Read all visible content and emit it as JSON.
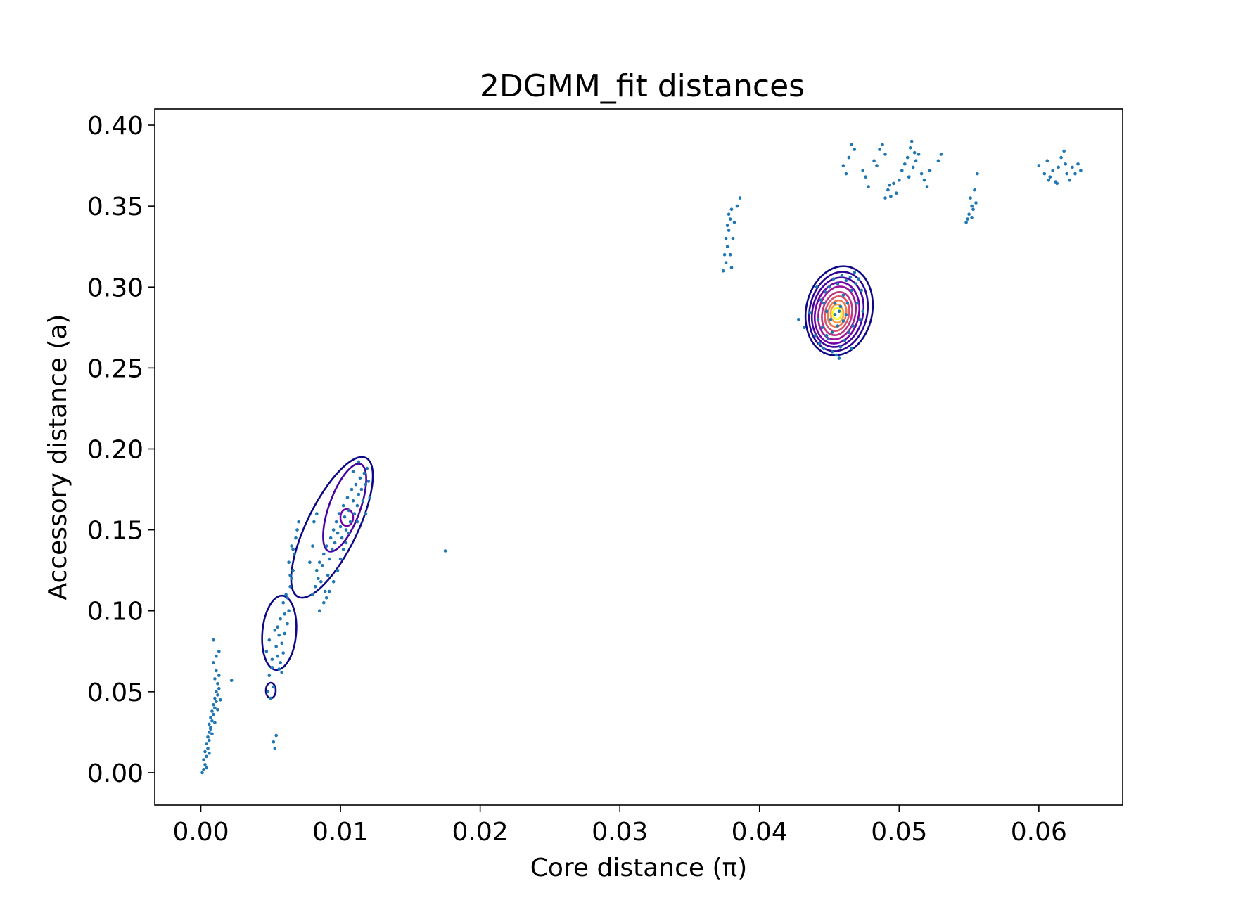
{
  "chart_data": {
    "type": "scatter",
    "title": "2DGMM_fit distances",
    "xlabel": "Core distance (π)",
    "ylabel": "Accessory distance (a)",
    "xlim": [
      -0.0033,
      0.066
    ],
    "ylim": [
      -0.02,
      0.41
    ],
    "xticks": [
      0.0,
      0.01,
      0.02,
      0.03,
      0.04,
      0.05,
      0.06
    ],
    "xtick_labels": [
      "0.00",
      "0.01",
      "0.02",
      "0.03",
      "0.04",
      "0.05",
      "0.06"
    ],
    "yticks": [
      0.0,
      0.05,
      0.1,
      0.15,
      0.2,
      0.25,
      0.3,
      0.35,
      0.4
    ],
    "ytick_labels": [
      "0.00",
      "0.05",
      "0.10",
      "0.15",
      "0.20",
      "0.25",
      "0.30",
      "0.35",
      "0.40"
    ],
    "grid": false,
    "point_color": "#1f77b4",
    "contour_colors": [
      "#0d0887",
      "#46039f",
      "#7201a8",
      "#9c179e",
      "#bd3786",
      "#d8576b",
      "#ed7953",
      "#fb9f3a",
      "#fdca26",
      "#f0f921"
    ],
    "series": [
      {
        "values": [
          [
            0.0001,
            0.0
          ],
          [
            0.0002,
            0.002
          ],
          [
            0.0003,
            0.005
          ],
          [
            0.0002,
            0.008
          ],
          [
            0.0004,
            0.01
          ],
          [
            0.0003,
            0.013
          ],
          [
            0.0005,
            0.015
          ],
          [
            0.0004,
            0.018
          ],
          [
            0.0006,
            0.02
          ],
          [
            0.0005,
            0.022
          ],
          [
            0.0006,
            0.025
          ],
          [
            0.0007,
            0.027
          ],
          [
            0.0006,
            0.03
          ],
          [
            0.0008,
            0.032
          ],
          [
            0.0007,
            0.034
          ],
          [
            0.0009,
            0.036
          ],
          [
            0.0008,
            0.038
          ],
          [
            0.001,
            0.04
          ],
          [
            0.0009,
            0.042
          ],
          [
            0.0011,
            0.044
          ],
          [
            0.001,
            0.046
          ],
          [
            0.0012,
            0.048
          ],
          [
            0.0011,
            0.05
          ],
          [
            0.0013,
            0.052
          ],
          [
            0.0012,
            0.055
          ],
          [
            0.001,
            0.058
          ],
          [
            0.0013,
            0.06
          ],
          [
            0.0011,
            0.063
          ],
          [
            0.0009,
            0.068
          ],
          [
            0.0011,
            0.072
          ],
          [
            0.0013,
            0.075
          ],
          [
            0.0009,
            0.082
          ],
          [
            0.0004,
            0.003
          ],
          [
            0.0006,
            0.012
          ],
          [
            0.0008,
            0.024
          ],
          [
            0.001,
            0.031
          ],
          [
            0.0012,
            0.039
          ],
          [
            0.0014,
            0.045
          ],
          [
            0.0007,
            0.028
          ],
          [
            0.0022,
            0.057
          ],
          [
            0.0048,
            0.05
          ],
          [
            0.005,
            0.046
          ],
          [
            0.0052,
            0.053
          ],
          [
            0.0049,
            0.06
          ],
          [
            0.0051,
            0.065
          ],
          [
            0.0053,
            0.015
          ],
          [
            0.0052,
            0.019
          ],
          [
            0.0054,
            0.023
          ],
          [
            0.0047,
            0.075
          ],
          [
            0.0049,
            0.082
          ],
          [
            0.0051,
            0.07
          ],
          [
            0.0054,
            0.078
          ],
          [
            0.0056,
            0.085
          ],
          [
            0.0055,
            0.09
          ],
          [
            0.0057,
            0.095
          ],
          [
            0.0053,
            0.088
          ],
          [
            0.0058,
            0.08
          ],
          [
            0.0055,
            0.072
          ],
          [
            0.006,
            0.098
          ],
          [
            0.0059,
            0.105
          ],
          [
            0.0061,
            0.11
          ],
          [
            0.0057,
            0.068
          ],
          [
            0.0058,
            0.062
          ],
          [
            0.0062,
            0.092
          ],
          [
            0.0063,
            0.1
          ],
          [
            0.0064,
            0.115
          ],
          [
            0.0065,
            0.12
          ],
          [
            0.0066,
            0.125
          ],
          [
            0.0063,
            0.13
          ],
          [
            0.0067,
            0.135
          ],
          [
            0.0065,
            0.14
          ],
          [
            0.0068,
            0.145
          ],
          [
            0.0069,
            0.15
          ],
          [
            0.007,
            0.155
          ],
          [
            0.0066,
            0.138
          ],
          [
            0.0064,
            0.122
          ],
          [
            0.0062,
            0.108
          ],
          [
            0.006,
            0.086
          ],
          [
            0.0056,
            0.064
          ],
          [
            0.0059,
            0.074
          ],
          [
            0.008,
            0.11
          ],
          [
            0.0082,
            0.115
          ],
          [
            0.0084,
            0.12
          ],
          [
            0.0083,
            0.125
          ],
          [
            0.0085,
            0.13
          ],
          [
            0.0087,
            0.128
          ],
          [
            0.0086,
            0.118
          ],
          [
            0.0088,
            0.135
          ],
          [
            0.0089,
            0.112
          ],
          [
            0.009,
            0.14
          ],
          [
            0.0091,
            0.122
          ],
          [
            0.0092,
            0.132
          ],
          [
            0.0093,
            0.145
          ],
          [
            0.0094,
            0.138
          ],
          [
            0.0095,
            0.15
          ],
          [
            0.0096,
            0.142
          ],
          [
            0.0097,
            0.155
          ],
          [
            0.0098,
            0.148
          ],
          [
            0.0099,
            0.16
          ],
          [
            0.01,
            0.152
          ],
          [
            0.0101,
            0.145
          ],
          [
            0.0102,
            0.165
          ],
          [
            0.0103,
            0.158
          ],
          [
            0.0104,
            0.15
          ],
          [
            0.0105,
            0.17
          ],
          [
            0.0106,
            0.162
          ],
          [
            0.0107,
            0.155
          ],
          [
            0.0108,
            0.175
          ],
          [
            0.0109,
            0.168
          ],
          [
            0.011,
            0.16
          ],
          [
            0.0111,
            0.178
          ],
          [
            0.0112,
            0.165
          ],
          [
            0.0113,
            0.172
          ],
          [
            0.0114,
            0.182
          ],
          [
            0.0115,
            0.175
          ],
          [
            0.0116,
            0.168
          ],
          [
            0.0117,
            0.185
          ],
          [
            0.0118,
            0.178
          ],
          [
            0.0119,
            0.188
          ],
          [
            0.012,
            0.18
          ],
          [
            0.0088,
            0.105
          ],
          [
            0.009,
            0.108
          ],
          [
            0.0085,
            0.1
          ],
          [
            0.0092,
            0.112
          ],
          [
            0.0095,
            0.118
          ],
          [
            0.0098,
            0.125
          ],
          [
            0.01,
            0.132
          ],
          [
            0.0102,
            0.138
          ],
          [
            0.0104,
            0.142
          ],
          [
            0.0106,
            0.148
          ],
          [
            0.0078,
            0.13
          ],
          [
            0.008,
            0.14
          ],
          [
            0.0081,
            0.155
          ],
          [
            0.0083,
            0.16
          ],
          [
            0.0112,
            0.155
          ],
          [
            0.0118,
            0.16
          ],
          [
            0.0121,
            0.17
          ],
          [
            0.0113,
            0.192
          ],
          [
            0.0109,
            0.186
          ],
          [
            0.0175,
            0.137
          ],
          [
            0.0374,
            0.31
          ],
          [
            0.0376,
            0.315
          ],
          [
            0.0375,
            0.32
          ],
          [
            0.0377,
            0.325
          ],
          [
            0.0376,
            0.33
          ],
          [
            0.0378,
            0.335
          ],
          [
            0.0377,
            0.338
          ],
          [
            0.0379,
            0.342
          ],
          [
            0.0378,
            0.345
          ],
          [
            0.038,
            0.348
          ],
          [
            0.0381,
            0.33
          ],
          [
            0.0382,
            0.34
          ],
          [
            0.0384,
            0.35
          ],
          [
            0.0386,
            0.355
          ],
          [
            0.0379,
            0.32
          ],
          [
            0.038,
            0.312
          ],
          [
            0.044,
            0.27
          ],
          [
            0.0443,
            0.265
          ],
          [
            0.0446,
            0.262
          ],
          [
            0.0449,
            0.268
          ],
          [
            0.0452,
            0.26
          ],
          [
            0.0455,
            0.258
          ],
          [
            0.0458,
            0.263
          ],
          [
            0.0461,
            0.267
          ],
          [
            0.0464,
            0.272
          ],
          [
            0.0467,
            0.276
          ],
          [
            0.0442,
            0.28
          ],
          [
            0.0445,
            0.275
          ],
          [
            0.0448,
            0.285
          ],
          [
            0.0451,
            0.28
          ],
          [
            0.0454,
            0.29
          ],
          [
            0.0457,
            0.285
          ],
          [
            0.046,
            0.295
          ],
          [
            0.0463,
            0.29
          ],
          [
            0.0466,
            0.298
          ],
          [
            0.0469,
            0.302
          ],
          [
            0.0444,
            0.292
          ],
          [
            0.0447,
            0.297
          ],
          [
            0.045,
            0.3
          ],
          [
            0.0453,
            0.305
          ],
          [
            0.0456,
            0.302
          ],
          [
            0.0459,
            0.307
          ],
          [
            0.0462,
            0.304
          ],
          [
            0.0465,
            0.306
          ],
          [
            0.0468,
            0.309
          ],
          [
            0.0471,
            0.305
          ],
          [
            0.0452,
            0.272
          ],
          [
            0.0456,
            0.276
          ],
          [
            0.046,
            0.279
          ],
          [
            0.0454,
            0.283
          ],
          [
            0.0458,
            0.288
          ],
          [
            0.0462,
            0.283
          ],
          [
            0.0448,
            0.27
          ],
          [
            0.0446,
            0.29
          ],
          [
            0.047,
            0.29
          ],
          [
            0.0473,
            0.298
          ],
          [
            0.0428,
            0.28
          ],
          [
            0.0432,
            0.275
          ],
          [
            0.0436,
            0.284
          ],
          [
            0.0472,
            0.28
          ],
          [
            0.0474,
            0.285
          ],
          [
            0.0441,
            0.3
          ],
          [
            0.0466,
            0.262
          ],
          [
            0.0457,
            0.256
          ],
          [
            0.046,
            0.375
          ],
          [
            0.0462,
            0.37
          ],
          [
            0.0464,
            0.38
          ],
          [
            0.0466,
            0.388
          ],
          [
            0.0468,
            0.385
          ],
          [
            0.0474,
            0.372
          ],
          [
            0.0476,
            0.368
          ],
          [
            0.0478,
            0.362
          ],
          [
            0.0482,
            0.378
          ],
          [
            0.0484,
            0.375
          ],
          [
            0.0486,
            0.385
          ],
          [
            0.0488,
            0.388
          ],
          [
            0.049,
            0.382
          ],
          [
            0.0492,
            0.36
          ],
          [
            0.0494,
            0.356
          ],
          [
            0.0496,
            0.364
          ],
          [
            0.0498,
            0.358
          ],
          [
            0.05,
            0.366
          ],
          [
            0.0502,
            0.372
          ],
          [
            0.0504,
            0.376
          ],
          [
            0.0506,
            0.38
          ],
          [
            0.0508,
            0.386
          ],
          [
            0.051,
            0.374
          ],
          [
            0.0512,
            0.378
          ],
          [
            0.0514,
            0.382
          ],
          [
            0.0516,
            0.37
          ],
          [
            0.0518,
            0.366
          ],
          [
            0.052,
            0.362
          ],
          [
            0.0522,
            0.372
          ],
          [
            0.0528,
            0.378
          ],
          [
            0.053,
            0.382
          ],
          [
            0.049,
            0.355
          ],
          [
            0.0493,
            0.363
          ],
          [
            0.0509,
            0.39
          ],
          [
            0.0511,
            0.383
          ],
          [
            0.0507,
            0.368
          ],
          [
            0.0548,
            0.34
          ],
          [
            0.055,
            0.345
          ],
          [
            0.0552,
            0.35
          ],
          [
            0.0551,
            0.355
          ],
          [
            0.0553,
            0.348
          ],
          [
            0.0555,
            0.352
          ],
          [
            0.0549,
            0.342
          ],
          [
            0.0554,
            0.36
          ],
          [
            0.0556,
            0.37
          ],
          [
            0.0552,
            0.343
          ],
          [
            0.06,
            0.375
          ],
          [
            0.0604,
            0.37
          ],
          [
            0.0606,
            0.378
          ],
          [
            0.0608,
            0.368
          ],
          [
            0.061,
            0.372
          ],
          [
            0.0612,
            0.365
          ],
          [
            0.0614,
            0.374
          ],
          [
            0.0616,
            0.38
          ],
          [
            0.0618,
            0.384
          ],
          [
            0.062,
            0.37
          ],
          [
            0.0622,
            0.366
          ],
          [
            0.0624,
            0.374
          ],
          [
            0.0626,
            0.37
          ],
          [
            0.0628,
            0.376
          ],
          [
            0.063,
            0.372
          ],
          [
            0.0619,
            0.376
          ],
          [
            0.0613,
            0.364
          ],
          [
            0.0607,
            0.366
          ]
        ]
      }
    ]
  }
}
